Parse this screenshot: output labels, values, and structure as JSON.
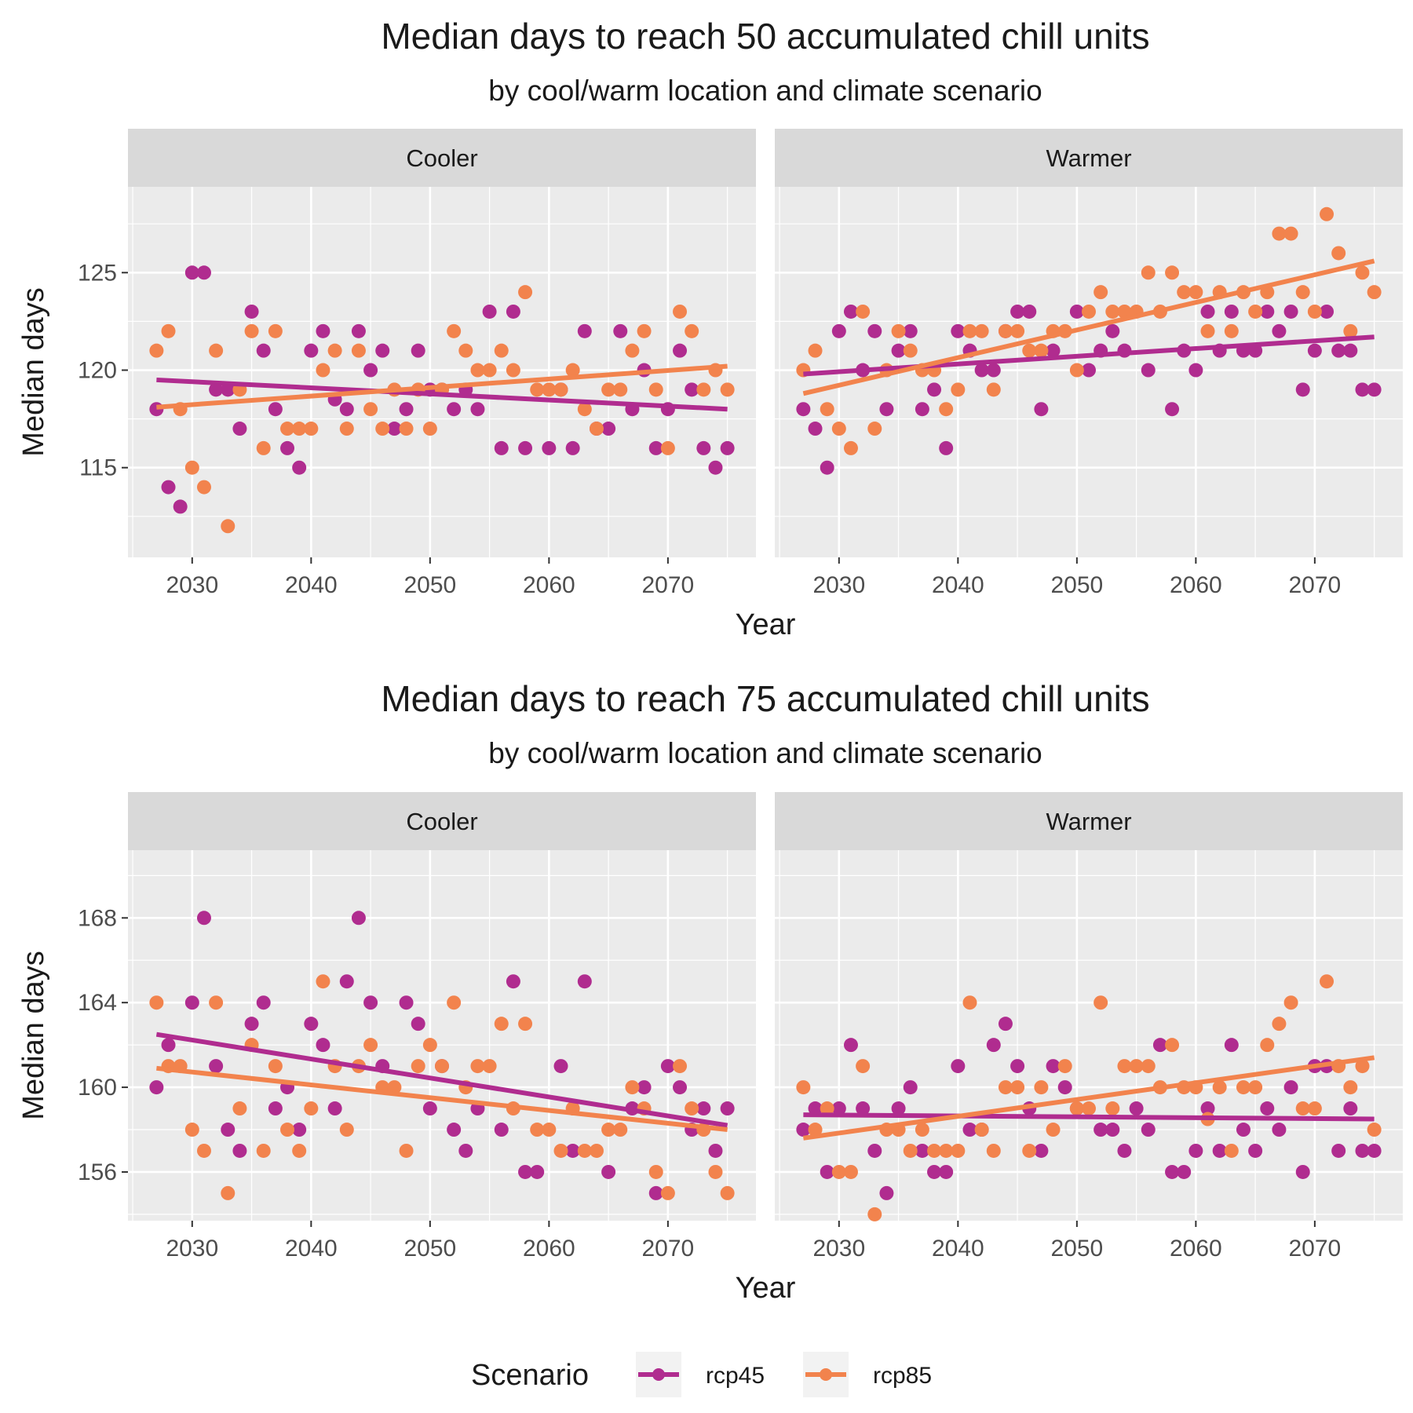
{
  "colors": {
    "rcp45": "#B02C8F",
    "rcp85": "#F2834D",
    "panel_bg": "#EBEBEB",
    "strip_bg": "#D9D9D9",
    "grid": "#FFFFFF",
    "text": "#1A1A1A",
    "tick_text": "#4D4D4D"
  },
  "legend": {
    "title": "Scenario",
    "placement": "bottom",
    "items": [
      "rcp45",
      "rcp85"
    ]
  },
  "chart_data": [
    {
      "type": "scatter",
      "title": "Median days to reach 50 accumulated chill units",
      "subtitle": "by cool/warm location and climate scenario",
      "xlabel": "Year",
      "ylabel": "Median days",
      "xlim": [
        2024.6,
        2077.4
      ],
      "ylim": [
        110.4,
        129.4
      ],
      "xticks": [
        2030,
        2040,
        2050,
        2060,
        2070
      ],
      "yticks": [
        115,
        120,
        125
      ],
      "facets": [
        {
          "label": "Cooler",
          "series": [
            {
              "name": "rcp45",
              "x": [
                2027,
                2028,
                2029,
                2030,
                2031,
                2032,
                2033,
                2034,
                2035,
                2036,
                2037,
                2038,
                2039,
                2040,
                2041,
                2042,
                2043,
                2044,
                2045,
                2046,
                2047,
                2048,
                2049,
                2050,
                2051,
                2052,
                2053,
                2054,
                2055,
                2056,
                2057,
                2058,
                2060,
                2061,
                2062,
                2063,
                2064,
                2065,
                2066,
                2067,
                2068,
                2069,
                2070,
                2071,
                2072,
                2073,
                2074,
                2075
              ],
              "y": [
                118,
                114,
                113,
                125,
                125,
                119,
                119,
                117,
                123,
                121,
                118,
                116,
                115,
                121,
                122,
                118.5,
                118,
                122,
                120,
                121,
                117,
                118,
                121,
                119,
                119,
                118,
                119,
                118,
                123,
                116,
                123,
                116,
                116,
                119,
                116,
                122,
                117,
                117,
                122,
                118,
                120,
                116,
                118,
                121,
                119,
                116,
                115,
                116
              ],
              "trend": [
                119.5,
                118.0
              ]
            },
            {
              "name": "rcp85",
              "x": [
                2027,
                2028,
                2029,
                2030,
                2031,
                2032,
                2033,
                2034,
                2035,
                2036,
                2037,
                2038,
                2039,
                2040,
                2041,
                2042,
                2043,
                2044,
                2045,
                2046,
                2047,
                2048,
                2049,
                2050,
                2051,
                2052,
                2053,
                2054,
                2055,
                2056,
                2057,
                2058,
                2059,
                2060,
                2061,
                2062,
                2063,
                2064,
                2065,
                2066,
                2067,
                2068,
                2069,
                2070,
                2071,
                2072,
                2073,
                2074,
                2075
              ],
              "y": [
                121,
                122,
                118,
                115,
                114,
                121,
                112,
                119,
                122,
                116,
                122,
                117,
                117,
                117,
                120,
                121,
                117,
                121,
                118,
                117,
                119,
                117,
                119,
                117,
                119,
                122,
                121,
                120,
                120,
                121,
                120,
                124,
                119,
                119,
                119,
                120,
                118,
                117,
                119,
                119,
                121,
                122,
                119,
                116,
                123,
                122,
                119,
                120,
                119
              ],
              "trend": [
                118.1,
                120.2
              ]
            }
          ]
        },
        {
          "label": "Warmer",
          "series": [
            {
              "name": "rcp45",
              "x": [
                2027,
                2028,
                2029,
                2030,
                2031,
                2032,
                2033,
                2034,
                2035,
                2036,
                2037,
                2038,
                2039,
                2040,
                2041,
                2042,
                2043,
                2044,
                2045,
                2046,
                2047,
                2048,
                2050,
                2051,
                2052,
                2053,
                2054,
                2056,
                2058,
                2059,
                2060,
                2061,
                2062,
                2063,
                2064,
                2065,
                2066,
                2067,
                2068,
                2069,
                2070,
                2071,
                2072,
                2073,
                2074,
                2075
              ],
              "y": [
                118,
                117,
                115,
                122,
                123,
                120,
                122,
                118,
                121,
                122,
                118,
                119,
                116,
                122,
                121,
                120,
                120,
                122,
                123,
                123,
                118,
                121,
                123,
                120,
                121,
                122,
                121,
                120,
                118,
                121,
                120,
                123,
                121,
                123,
                121,
                121,
                123,
                122,
                123,
                119,
                121,
                123,
                121,
                121,
                119,
                119
              ],
              "trend": [
                119.8,
                121.7
              ]
            },
            {
              "name": "rcp85",
              "x": [
                2027,
                2028,
                2029,
                2030,
                2031,
                2032,
                2033,
                2034,
                2035,
                2036,
                2037,
                2038,
                2039,
                2040,
                2041,
                2042,
                2043,
                2044,
                2045,
                2046,
                2047,
                2048,
                2049,
                2050,
                2051,
                2052,
                2053,
                2054,
                2055,
                2056,
                2057,
                2058,
                2059,
                2060,
                2061,
                2062,
                2063,
                2064,
                2065,
                2066,
                2067,
                2068,
                2069,
                2070,
                2071,
                2072,
                2073,
                2074,
                2075
              ],
              "y": [
                120,
                121,
                118,
                117,
                116,
                123,
                117,
                120,
                122,
                121,
                120,
                120,
                118,
                119,
                122,
                122,
                119,
                122,
                122,
                121,
                121,
                122,
                122,
                120,
                123,
                124,
                123,
                123,
                123,
                125,
                123,
                125,
                124,
                124,
                122,
                124,
                122,
                124,
                123,
                124,
                127,
                127,
                124,
                123,
                128,
                126,
                122,
                125,
                124
              ],
              "trend": [
                118.8,
                125.6
              ]
            }
          ]
        }
      ]
    },
    {
      "type": "scatter",
      "title": "Median days to reach 75 accumulated chill units",
      "subtitle": "by cool/warm location and climate scenario",
      "xlabel": "Year",
      "ylabel": "Median days",
      "xlim": [
        2024.6,
        2077.4
      ],
      "ylim": [
        153.7,
        171.2
      ],
      "xticks": [
        2030,
        2040,
        2050,
        2060,
        2070
      ],
      "yticks": [
        156,
        160,
        164,
        168
      ],
      "facets": [
        {
          "label": "Cooler",
          "series": [
            {
              "name": "rcp45",
              "x": [
                2027,
                2028,
                2030,
                2031,
                2032,
                2033,
                2034,
                2035,
                2036,
                2037,
                2038,
                2039,
                2040,
                2041,
                2042,
                2043,
                2044,
                2045,
                2046,
                2048,
                2049,
                2050,
                2051,
                2052,
                2053,
                2054,
                2056,
                2057,
                2058,
                2059,
                2061,
                2062,
                2063,
                2065,
                2067,
                2068,
                2069,
                2070,
                2071,
                2072,
                2073,
                2074,
                2075
              ],
              "y": [
                160,
                162,
                164,
                168,
                161,
                158,
                157,
                163,
                164,
                159,
                160,
                158,
                163,
                162,
                159,
                165,
                168,
                164,
                161,
                164,
                163,
                159,
                161,
                158,
                157,
                159,
                158,
                165,
                156,
                156,
                161,
                157,
                165,
                156,
                159,
                160,
                155,
                161,
                160,
                158,
                159,
                157,
                159
              ],
              "trend": [
                162.5,
                158.2
              ]
            },
            {
              "name": "rcp85",
              "x": [
                2027,
                2028,
                2029,
                2030,
                2031,
                2032,
                2033,
                2034,
                2035,
                2036,
                2037,
                2038,
                2039,
                2040,
                2041,
                2042,
                2043,
                2044,
                2045,
                2046,
                2047,
                2048,
                2049,
                2050,
                2051,
                2052,
                2053,
                2054,
                2055,
                2056,
                2057,
                2058,
                2059,
                2060,
                2061,
                2062,
                2063,
                2064,
                2065,
                2066,
                2067,
                2068,
                2069,
                2070,
                2071,
                2072,
                2073,
                2074,
                2075
              ],
              "y": [
                164,
                161,
                161,
                158,
                157,
                164,
                155,
                159,
                162,
                157,
                161,
                158,
                157,
                159,
                165,
                161,
                158,
                161,
                162,
                160,
                160,
                157,
                161,
                162,
                161,
                164,
                160,
                161,
                161,
                163,
                159,
                163,
                158,
                158,
                157,
                159,
                157,
                157,
                158,
                158,
                160,
                159,
                156,
                155,
                161,
                159,
                158,
                156,
                155
              ],
              "trend": [
                160.9,
                158.0
              ]
            }
          ]
        },
        {
          "label": "Warmer",
          "series": [
            {
              "name": "rcp45",
              "x": [
                2027,
                2028,
                2029,
                2030,
                2031,
                2032,
                2033,
                2034,
                2035,
                2036,
                2037,
                2038,
                2039,
                2040,
                2041,
                2042,
                2043,
                2044,
                2045,
                2046,
                2047,
                2048,
                2049,
                2050,
                2052,
                2053,
                2054,
                2055,
                2056,
                2057,
                2058,
                2059,
                2060,
                2061,
                2062,
                2063,
                2064,
                2065,
                2066,
                2067,
                2068,
                2069,
                2070,
                2071,
                2072,
                2073,
                2074,
                2075
              ],
              "y": [
                158,
                159,
                156,
                159,
                162,
                159,
                157,
                155,
                159,
                160,
                157,
                156,
                156,
                161,
                158,
                158,
                162,
                163,
                161,
                159,
                157,
                161,
                160,
                159,
                158,
                158,
                157,
                159,
                158,
                162,
                156,
                156,
                157,
                159,
                157,
                162,
                158,
                157,
                159,
                158,
                160,
                156,
                161,
                161,
                157,
                159,
                157,
                157
              ],
              "trend": [
                158.7,
                158.5
              ]
            },
            {
              "name": "rcp85",
              "x": [
                2027,
                2028,
                2029,
                2030,
                2031,
                2032,
                2033,
                2034,
                2035,
                2036,
                2037,
                2038,
                2039,
                2040,
                2041,
                2042,
                2043,
                2044,
                2045,
                2046,
                2047,
                2048,
                2049,
                2050,
                2051,
                2052,
                2053,
                2054,
                2055,
                2056,
                2057,
                2058,
                2059,
                2060,
                2061,
                2062,
                2063,
                2064,
                2065,
                2066,
                2067,
                2068,
                2069,
                2070,
                2071,
                2072,
                2073,
                2074,
                2075
              ],
              "y": [
                160,
                158,
                159,
                156,
                156,
                161,
                154,
                158,
                158,
                157,
                158,
                157,
                157,
                157,
                164,
                158,
                157,
                160,
                160,
                157,
                160,
                158,
                161,
                159,
                159,
                164,
                159,
                161,
                161,
                161,
                160,
                162,
                160,
                160,
                158.5,
                160,
                157,
                160,
                160,
                162,
                163,
                164,
                159,
                159,
                165,
                161,
                160,
                161,
                158
              ],
              "trend": [
                157.6,
                161.4
              ]
            }
          ]
        }
      ]
    }
  ]
}
